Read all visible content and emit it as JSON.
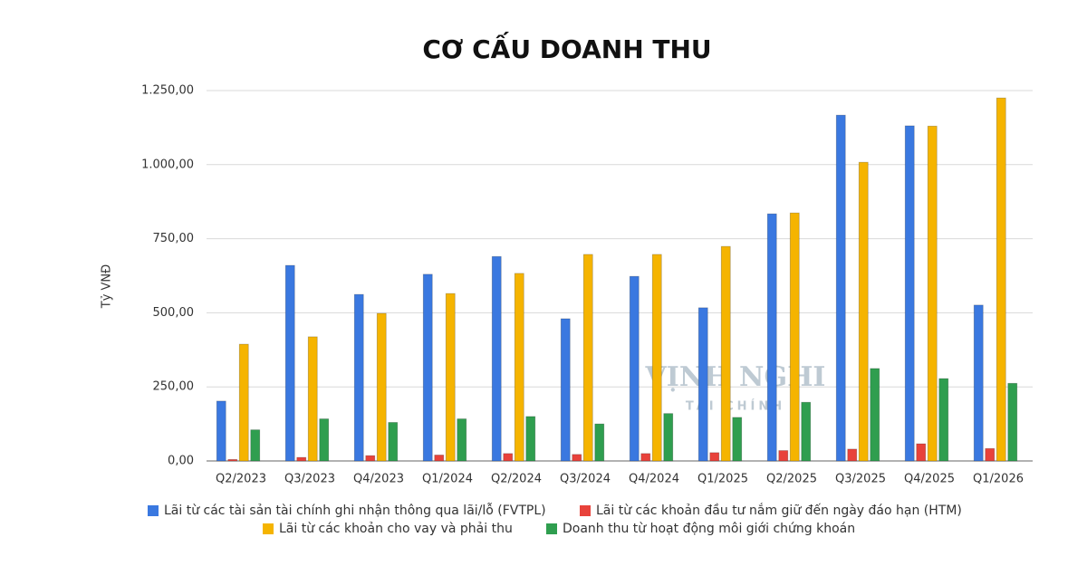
{
  "chart_data": {
    "type": "bar",
    "title": "CƠ CẤU DOANH THU",
    "y_label": "Tỷ VNĐ",
    "watermark": [
      "VỊNH NGHI",
      "TÀI CHÍNH"
    ],
    "categories": [
      "Q2/2023",
      "Q3/2023",
      "Q4/2023",
      "Q1/2024",
      "Q2/2024",
      "Q3/2024",
      "Q4/2024",
      "Q1/2025",
      "Q2/2025",
      "Q3/2025",
      "Q4/2025",
      "Q1/2026"
    ],
    "series": [
      {
        "name": "Lãi từ các tài sản tài chính ghi nhận thông qua lãi/lỗ (FVTPL)",
        "color": "#3a78e0",
        "values": [
          202,
          660,
          562,
          630,
          690,
          480,
          623,
          517,
          834,
          1167,
          1131,
          526
        ]
      },
      {
        "name": "Lãi từ các khoản đầu tư nắm giữ đến ngày đáo hạn (HTM)",
        "color": "#e8423b",
        "values": [
          5,
          12,
          18,
          20,
          25,
          22,
          25,
          28,
          35,
          40,
          58,
          42
        ]
      },
      {
        "name": "Lãi từ các khoản cho vay và phải thu",
        "color": "#f5b400",
        "values": [
          394,
          419,
          498,
          565,
          633,
          697,
          697,
          724,
          837,
          1008,
          1130,
          1225
        ]
      },
      {
        "name": "Doanh thu từ hoạt động môi giới chứng khoán",
        "color": "#2f9e4f",
        "values": [
          105,
          142,
          130,
          142,
          150,
          125,
          160,
          147,
          198,
          312,
          278,
          262
        ]
      }
    ],
    "ylim": [
      0,
      1250
    ],
    "yticks": [
      {
        "value": 0,
        "label": "0,00"
      },
      {
        "value": 250,
        "label": "250,00"
      },
      {
        "value": 500,
        "label": "500,00"
      },
      {
        "value": 750,
        "label": "750,00"
      },
      {
        "value": 1000,
        "label": "1.000,00"
      },
      {
        "value": 1250,
        "label": "1.250,00"
      }
    ],
    "grid": true
  }
}
